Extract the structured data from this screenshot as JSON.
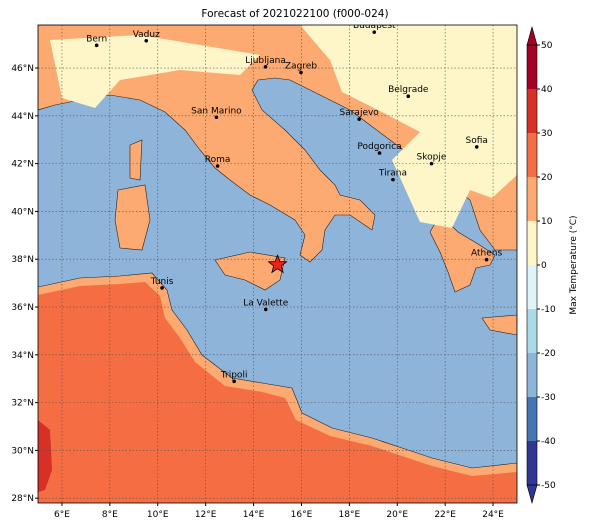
{
  "title": "Forecast of 2021022100 (f000-024)",
  "map": {
    "xlim": [
      5,
      25
    ],
    "ylim": [
      27.8,
      47.8
    ],
    "xticks": [
      {
        "value": 6,
        "label": "6°E"
      },
      {
        "value": 8,
        "label": "8°E"
      },
      {
        "value": 10,
        "label": "10°E"
      },
      {
        "value": 12,
        "label": "12°E"
      },
      {
        "value": 14,
        "label": "14°E"
      },
      {
        "value": 16,
        "label": "16°E"
      },
      {
        "value": 18,
        "label": "18°E"
      },
      {
        "value": 20,
        "label": "20°E"
      },
      {
        "value": 22,
        "label": "22°E"
      },
      {
        "value": 24,
        "label": "24°E"
      }
    ],
    "yticks": [
      {
        "value": 28,
        "label": "28°N"
      },
      {
        "value": 30,
        "label": "30°N"
      },
      {
        "value": 32,
        "label": "32°N"
      },
      {
        "value": 34,
        "label": "34°N"
      },
      {
        "value": 36,
        "label": "36°N"
      },
      {
        "value": 38,
        "label": "38°N"
      },
      {
        "value": 40,
        "label": "40°N"
      },
      {
        "value": 42,
        "label": "42°N"
      },
      {
        "value": 44,
        "label": "44°N"
      },
      {
        "value": 46,
        "label": "46°N"
      }
    ],
    "cities": [
      {
        "name": "Bern",
        "lon": 7.45,
        "lat": 46.95
      },
      {
        "name": "Vaduz",
        "lon": 9.52,
        "lat": 47.14
      },
      {
        "name": "Budapest",
        "lon": 19.04,
        "lat": 47.5
      },
      {
        "name": "Ljubljana",
        "lon": 14.5,
        "lat": 46.05
      },
      {
        "name": "Zagreb",
        "lon": 15.98,
        "lat": 45.81
      },
      {
        "name": "Belgrade",
        "lon": 20.46,
        "lat": 44.82
      },
      {
        "name": "San Marino",
        "lon": 12.45,
        "lat": 43.94
      },
      {
        "name": "Sarajevo",
        "lon": 18.41,
        "lat": 43.86
      },
      {
        "name": "Sofia",
        "lon": 23.32,
        "lat": 42.7
      },
      {
        "name": "Roma",
        "lon": 12.5,
        "lat": 41.9
      },
      {
        "name": "Podgorica",
        "lon": 19.26,
        "lat": 42.44
      },
      {
        "name": "Skopje",
        "lon": 21.43,
        "lat": 42.0
      },
      {
        "name": "Tirana",
        "lon": 19.82,
        "lat": 41.33
      },
      {
        "name": "Athens",
        "lon": 23.73,
        "lat": 37.98
      },
      {
        "name": "Tunis",
        "lon": 10.18,
        "lat": 36.8
      },
      {
        "name": "La Valette",
        "lon": 14.51,
        "lat": 35.9
      },
      {
        "name": "Tripoli",
        "lon": 13.19,
        "lat": 32.89
      }
    ],
    "marker": {
      "lon": 15.0,
      "lat": 37.77
    }
  },
  "colorbar": {
    "label": "Max Temperature (°C)",
    "ticks": [
      -50,
      -40,
      -30,
      -20,
      -10,
      0,
      10,
      20,
      30,
      40,
      50
    ],
    "colors": [
      "#313695",
      "#4575b4",
      "#8fb4d9",
      "#abd9e9",
      "#e0f3f8",
      "#fef6c8",
      "#fcaa72",
      "#f46d43",
      "#d73027",
      "#a50026"
    ]
  }
}
